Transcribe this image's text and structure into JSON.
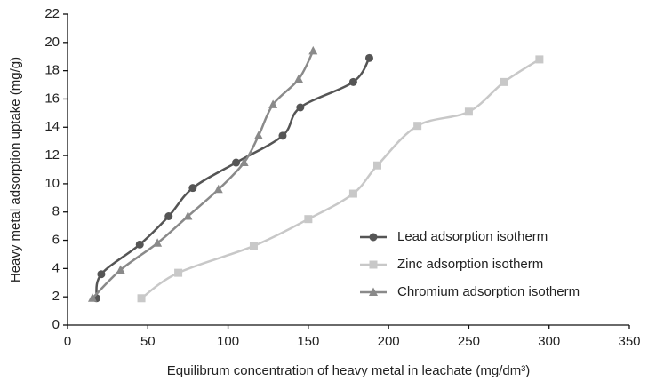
{
  "chart_data": {
    "type": "line",
    "xlabel": "Equilibrum concentration of heavy metal in leachate (mg/dm³)",
    "ylabel": "Heavy metal adsorption uptake (mg/g)",
    "xlim": [
      0,
      350
    ],
    "xticks": [
      0,
      50,
      100,
      150,
      200,
      250,
      300,
      350
    ],
    "ylim": [
      0,
      22
    ],
    "yticks": [
      0,
      2,
      4,
      6,
      8,
      10,
      12,
      14,
      16,
      18,
      20,
      22
    ],
    "grid": false,
    "legend": "right",
    "series": [
      {
        "name": "Lead adsorption isotherm",
        "color": "#555555",
        "marker": "circle",
        "x": [
          18,
          21,
          45,
          63,
          78,
          105,
          134,
          145,
          178,
          188
        ],
        "values": [
          1.9,
          3.6,
          5.7,
          7.7,
          9.7,
          11.5,
          13.4,
          15.4,
          17.2,
          18.9
        ]
      },
      {
        "name": "Zinc adsorption isotherm",
        "color": "#c8c8c8",
        "marker": "square",
        "x": [
          46,
          69,
          116,
          150,
          178,
          193,
          218,
          250,
          272,
          294
        ],
        "values": [
          1.9,
          3.7,
          5.6,
          7.5,
          9.3,
          11.3,
          14.1,
          15.1,
          17.2,
          18.8
        ]
      },
      {
        "name": "Chromium adsorption isotherm",
        "color": "#8a8a8a",
        "marker": "triangle",
        "x": [
          15.5,
          33,
          56,
          75,
          94,
          110,
          119,
          128,
          144,
          153
        ],
        "values": [
          1.9,
          3.9,
          5.8,
          7.7,
          9.6,
          11.5,
          13.4,
          15.6,
          17.4,
          19.4
        ]
      }
    ]
  }
}
